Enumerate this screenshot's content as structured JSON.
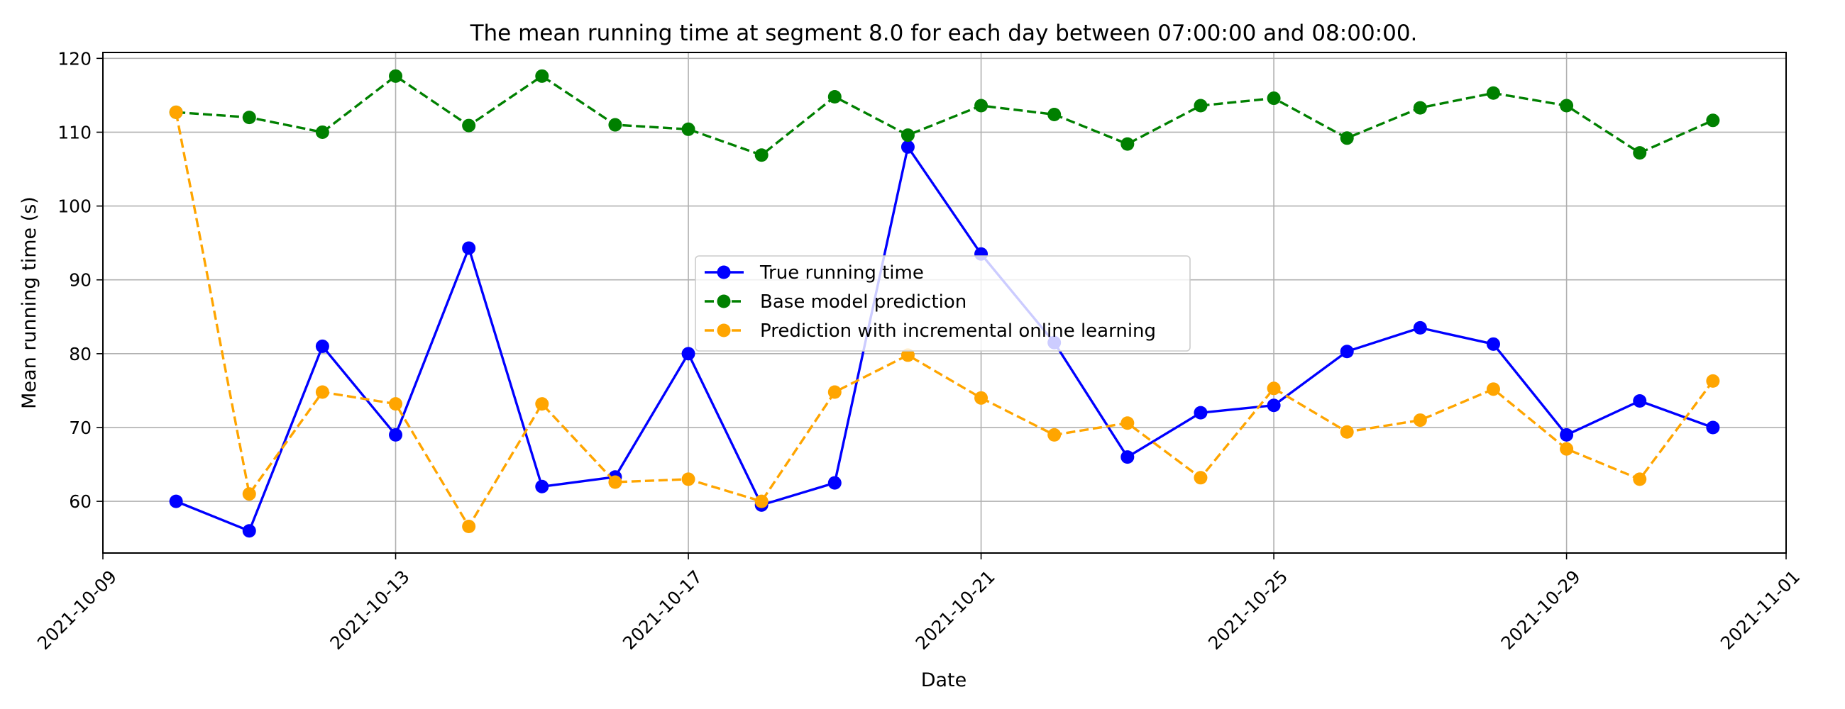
{
  "chart_data": {
    "type": "line",
    "title": "The mean running time at segment 8.0 for each day between 07:00:00 and 08:00:00.",
    "xlabel": "Date",
    "ylabel": "Mean running time (s)",
    "x": [
      "2021-10-10",
      "2021-10-11",
      "2021-10-12",
      "2021-10-13",
      "2021-10-14",
      "2021-10-15",
      "2021-10-16",
      "2021-10-17",
      "2021-10-18",
      "2021-10-19",
      "2021-10-20",
      "2021-10-21",
      "2021-10-22",
      "2021-10-23",
      "2021-10-24",
      "2021-10-25",
      "2021-10-26",
      "2021-10-27",
      "2021-10-28",
      "2021-10-29",
      "2021-10-30",
      "2021-10-31"
    ],
    "xlim": [
      "2021-10-09",
      "2021-11-01"
    ],
    "xticks": [
      "2021-10-09",
      "2021-10-13",
      "2021-10-17",
      "2021-10-21",
      "2021-10-25",
      "2021-10-29",
      "2021-11-01"
    ],
    "ylim": [
      53,
      120.8
    ],
    "yticks": [
      60,
      70,
      80,
      90,
      100,
      110,
      120
    ],
    "grid": true,
    "legend_position": "center",
    "series": [
      {
        "name": "True running time",
        "color": "#0000ff",
        "line_style": "solid",
        "values": [
          60,
          56,
          81,
          69,
          94.3,
          62,
          63.3,
          80,
          59.5,
          62.5,
          108,
          93.5,
          81.5,
          66,
          72,
          73,
          80.3,
          83.5,
          81.3,
          69,
          73.6,
          70
        ]
      },
      {
        "name": "Base model prediction",
        "color": "#008000",
        "line_style": "dashed",
        "values": [
          112.7,
          112,
          110,
          117.6,
          110.9,
          117.6,
          111,
          110.4,
          106.9,
          114.8,
          109.6,
          113.6,
          112.4,
          108.4,
          113.6,
          114.6,
          109.2,
          113.3,
          115.3,
          113.6,
          107.2,
          111.6
        ]
      },
      {
        "name": "Prediction with incremental online learning",
        "color": "#ffa500",
        "line_style": "dashed",
        "values": [
          112.7,
          61,
          74.8,
          73.2,
          56.6,
          73.2,
          62.6,
          63,
          60,
          74.8,
          79.8,
          74,
          69,
          70.6,
          63.2,
          75.3,
          69.4,
          71,
          75.2,
          67.1,
          63,
          76.3
        ]
      }
    ]
  }
}
